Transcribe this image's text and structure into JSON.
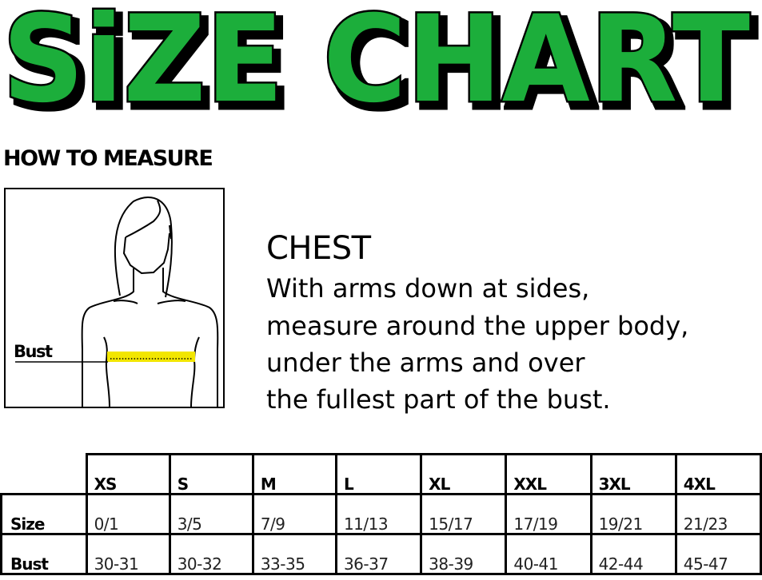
{
  "title": "SiZE CHART",
  "title_color": "#1fae3a",
  "how_to_measure": "HOW TO MEASURE",
  "figure": {
    "label": "Bust",
    "tape_color": "#f2e600"
  },
  "chest": {
    "heading": "CHEST",
    "lines": [
      "With arms down at sides,",
      "measure around the upper body,",
      "under the arms and over",
      "the fullest part of the bust."
    ]
  },
  "table": {
    "columns": [
      "XS",
      "S",
      "M",
      "L",
      "XL",
      "XXL",
      "3XL",
      "4XL"
    ],
    "rows": [
      {
        "label": "Size",
        "values": [
          "0/1",
          "3/5",
          "7/9",
          "11/13",
          "15/17",
          "17/19",
          "19/21",
          "21/23"
        ]
      },
      {
        "label": "Bust",
        "values": [
          "30-31",
          "30-32",
          "33-35",
          "36-37",
          "38-39",
          "40-41",
          "42-44",
          "45-47"
        ]
      }
    ]
  }
}
